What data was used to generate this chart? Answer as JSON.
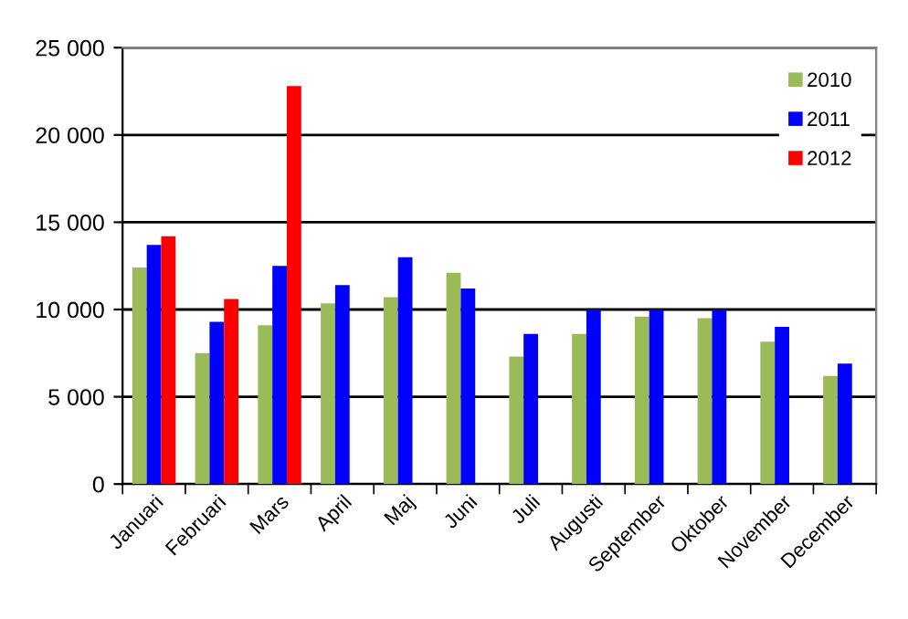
{
  "chart_data": {
    "type": "bar",
    "categories": [
      "Januari",
      "Februari",
      "Mars",
      "April",
      "Maj",
      "Juni",
      "Juli",
      "Augusti",
      "September",
      "Oktober",
      "November",
      "December"
    ],
    "series": [
      {
        "name": "2010",
        "color": "#9bbb59",
        "values": [
          12400,
          7500,
          9100,
          10350,
          10700,
          12100,
          7300,
          8600,
          9600,
          9500,
          8150,
          6200
        ]
      },
      {
        "name": "2011",
        "color": "#0000ff",
        "values": [
          13700,
          9300,
          12500,
          11400,
          13000,
          11200,
          8600,
          10000,
          10000,
          10000,
          9000,
          6900
        ]
      },
      {
        "name": "2012",
        "color": "#ff0000",
        "values": [
          14200,
          10600,
          22800,
          null,
          null,
          null,
          null,
          null,
          null,
          null,
          null,
          null
        ]
      }
    ],
    "ylim": [
      0,
      25000
    ],
    "yticks": [
      0,
      {
        "value": 5000,
        "label": "5 000"
      },
      {
        "value": 10000,
        "label": "10 000"
      },
      {
        "value": 15000,
        "label": "15 000"
      },
      {
        "value": 20000,
        "label": "20 000"
      },
      {
        "value": 25000,
        "label": "25 000"
      }
    ],
    "grid": "y",
    "legend": "top right"
  }
}
